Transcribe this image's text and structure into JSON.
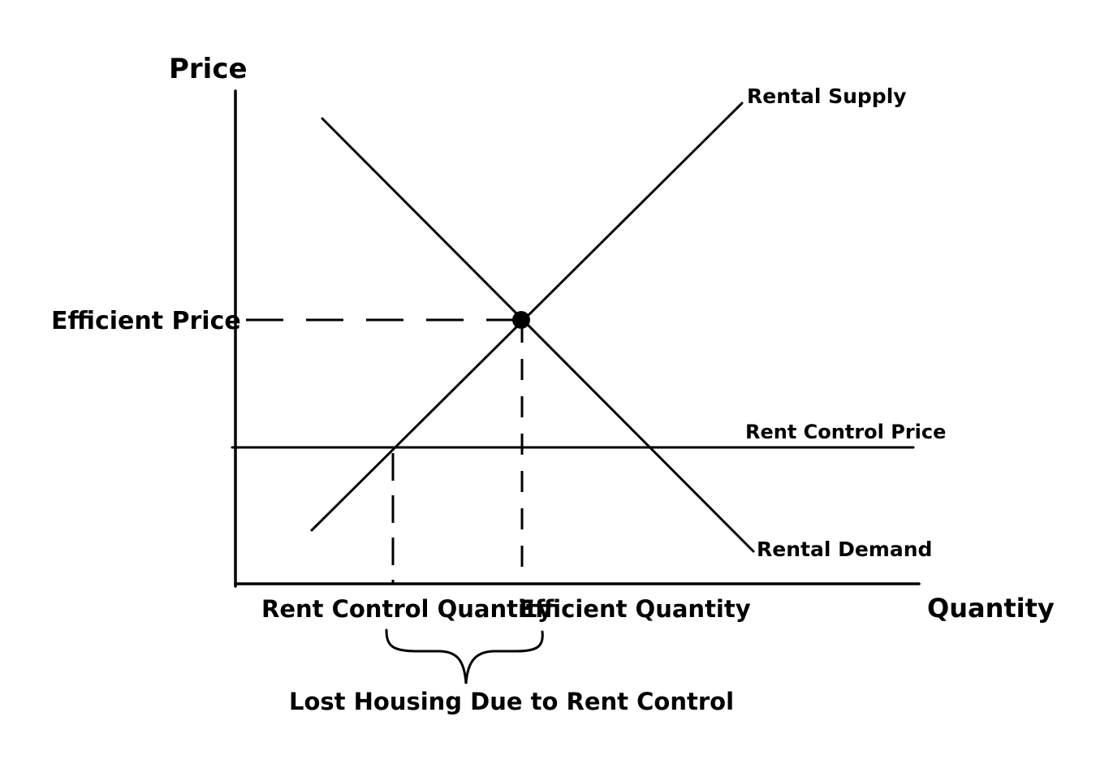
{
  "axes": {
    "y_label": "Price",
    "x_label": "Quantity"
  },
  "curves": {
    "supply_label": "Rental Supply",
    "demand_label": "Rental Demand",
    "rent_control_price_label": "Rent Control Price"
  },
  "levels": {
    "efficient_price_label": "Efficient Price"
  },
  "quantities": {
    "rent_control_quantity_label": "Rent Control Quantity",
    "efficient_quantity_label": "Efficient Quantity"
  },
  "annotation": {
    "lost_housing_label": "Lost Housing Due to Rent Control"
  }
}
